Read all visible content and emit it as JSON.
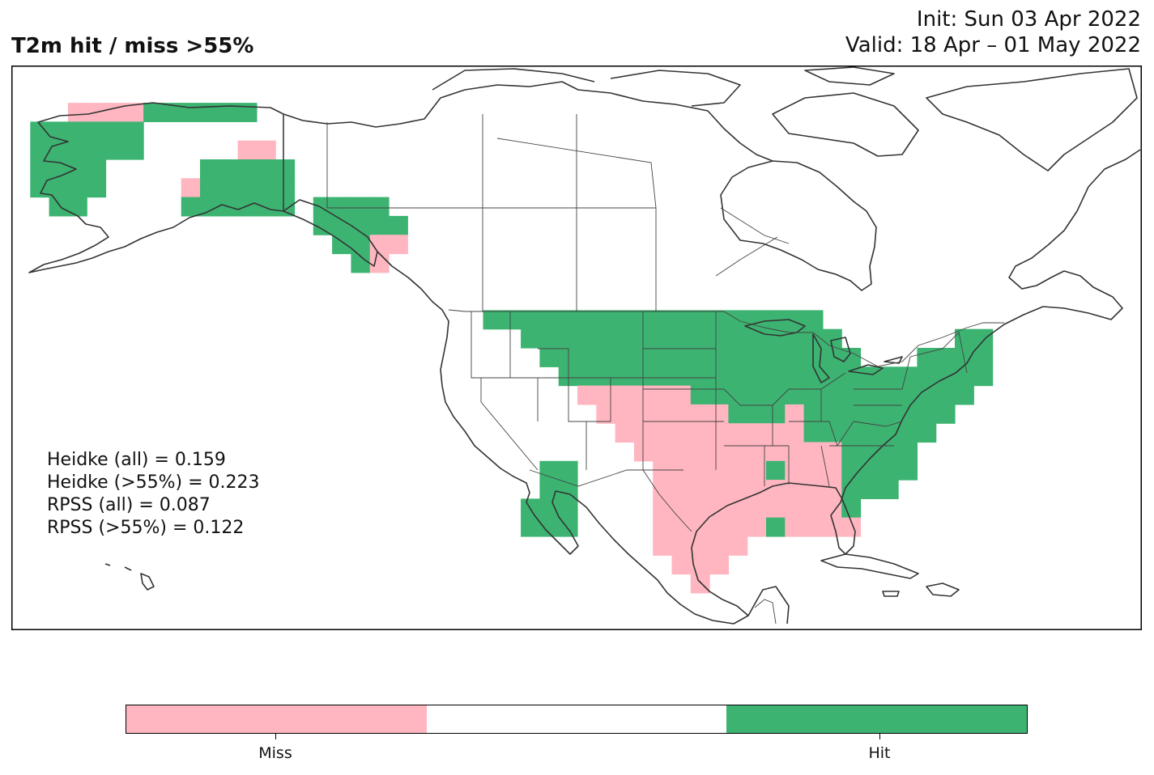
{
  "title": "T2m hit / miss  >55%",
  "init_line": "Init: Sun 03 Apr 2022",
  "valid_line": "Valid: 18 Apr – 01 May 2022",
  "stats": {
    "heidke_all": "Heidke (all) = 0.159",
    "heidke_55": "Heidke (>55%) = 0.223",
    "rpss_all": "RPSS (all) = 0.087",
    "rpss_55": "RPSS (>55%) = 0.122"
  },
  "legend": {
    "miss_label": "Miss",
    "hit_label": "Hit",
    "categories": [
      "Miss",
      "None",
      "Hit"
    ]
  },
  "colors": {
    "miss": "#ffb6c1",
    "hit": "#3cb371",
    "none": "#ffffff",
    "coastline": "#333333",
    "border": "#000000"
  }
}
